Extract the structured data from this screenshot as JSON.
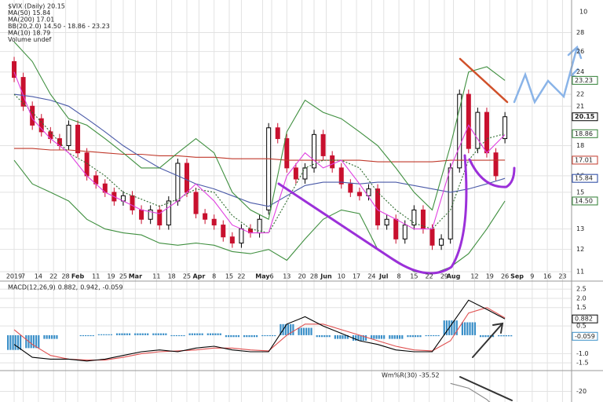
{
  "chart_data": {
    "type": "candlestick",
    "volume_tick": "10",
    "legend": [
      "$VIX (Daily) 20.15",
      "MA(50) 15.84",
      "MA(200) 17.01",
      "BB(20,2.0) 14.50 - 18.86 - 23.23",
      "MA(10) 18.79",
      "Volume undef"
    ],
    "legend_colors": [
      "#000000",
      "#1f3f9e",
      "#c0392b",
      "#2e7d32",
      "#d81bd8",
      "#555555"
    ],
    "log_scale": true,
    "grid": true,
    "xlim": [
      -2.6,
      184
    ],
    "xticks": [
      {
        "value": 0,
        "label": "2019"
      },
      {
        "value": 3,
        "label": "7"
      },
      {
        "value": 8,
        "label": "14"
      },
      {
        "value": 13,
        "label": "22"
      },
      {
        "value": 17,
        "label": "28"
      },
      {
        "value": 21,
        "label": "Feb"
      },
      {
        "value": 27,
        "label": "11"
      },
      {
        "value": 32,
        "label": "19"
      },
      {
        "value": 36,
        "label": "25"
      },
      {
        "value": 40,
        "label": "Mar"
      },
      {
        "value": 47,
        "label": "11"
      },
      {
        "value": 52,
        "label": "18"
      },
      {
        "value": 57,
        "label": "25"
      },
      {
        "value": 61,
        "label": "Apr"
      },
      {
        "value": 66,
        "label": "8"
      },
      {
        "value": 71,
        "label": "15"
      },
      {
        "value": 75,
        "label": "22"
      },
      {
        "value": 82,
        "label": "May"
      },
      {
        "value": 85,
        "label": "6"
      },
      {
        "value": 90,
        "label": "13"
      },
      {
        "value": 95,
        "label": "20"
      },
      {
        "value": 99,
        "label": "28"
      },
      {
        "value": 103,
        "label": "Jun"
      },
      {
        "value": 108,
        "label": "10"
      },
      {
        "value": 113,
        "label": "17"
      },
      {
        "value": 118,
        "label": "24"
      },
      {
        "value": 122,
        "label": "Jul"
      },
      {
        "value": 127,
        "label": "8"
      },
      {
        "value": 132,
        "label": "15"
      },
      {
        "value": 137,
        "label": "22"
      },
      {
        "value": 142,
        "label": "29"
      },
      {
        "value": 145,
        "label": "Aug"
      },
      {
        "value": 152,
        "label": "12"
      },
      {
        "value": 157,
        "label": "19"
      },
      {
        "value": 162,
        "label": "26"
      },
      {
        "value": 166,
        "label": "Sep"
      },
      {
        "value": 171,
        "label": "9"
      },
      {
        "value": 176,
        "label": "16"
      },
      {
        "value": 181,
        "label": "23"
      }
    ],
    "ylim": [
      10.8,
      31.8
    ],
    "yticks": [
      11,
      12,
      13,
      15,
      16,
      18,
      21,
      22,
      24,
      26,
      28
    ],
    "candles": {
      "x": [
        0,
        3,
        6,
        9,
        12,
        15,
        18,
        21,
        24,
        27,
        30,
        33,
        36,
        39,
        42,
        45,
        48,
        51,
        54,
        57,
        60,
        63,
        66,
        69,
        72,
        75,
        78,
        81,
        84,
        87,
        90,
        93,
        96,
        99,
        102,
        105,
        108,
        111,
        114,
        117,
        120,
        123,
        126,
        129,
        132,
        135,
        138,
        141,
        144,
        147,
        150,
        153,
        156,
        159,
        162
      ],
      "open": [
        25,
        23.5,
        21,
        20,
        19,
        18.5,
        18,
        19.5,
        17.5,
        16,
        15.5,
        15,
        14.5,
        14.8,
        14,
        13.5,
        14,
        13.2,
        14.5,
        16.8,
        15,
        13.8,
        13.5,
        13.2,
        12.6,
        12.3,
        13,
        12.8,
        14,
        19.3,
        18.5,
        16.5,
        15.8,
        16.5,
        18.8,
        17.3,
        16.5,
        15.5,
        15,
        14.8,
        15.2,
        13.2,
        13.5,
        12.5,
        13.2,
        14,
        13,
        12.2,
        12.5,
        16.5,
        22,
        17.8,
        20.5,
        17.5,
        18.5
      ],
      "close": [
        23.5,
        21,
        19.5,
        19,
        18.5,
        18,
        19.5,
        17.5,
        16,
        15.5,
        15,
        14.5,
        14.8,
        14,
        13.5,
        14,
        13.2,
        14.5,
        16.8,
        15,
        13.8,
        13.5,
        13.2,
        12.6,
        12.3,
        13,
        12.8,
        13.5,
        19.3,
        18.5,
        16.5,
        15.8,
        16.5,
        18.8,
        17.3,
        16.5,
        15.5,
        15,
        14.8,
        15.2,
        13.2,
        13.5,
        12.5,
        13.2,
        14,
        13,
        12.2,
        12.5,
        16.5,
        22,
        17.8,
        20.5,
        17.5,
        16,
        20.15
      ],
      "up_color": "#000000",
      "down_color": "#c8102e"
    },
    "x": [
      0,
      6,
      12,
      18,
      24,
      30,
      36,
      42,
      48,
      54,
      60,
      66,
      72,
      78,
      84,
      90,
      96,
      102,
      108,
      114,
      120,
      126,
      132,
      138,
      144,
      150,
      156,
      162
    ],
    "series": [
      {
        "name": "MA(200)",
        "color": "#c0392b",
        "values": [
          17.8,
          17.8,
          17.7,
          17.7,
          17.6,
          17.5,
          17.4,
          17.4,
          17.3,
          17.3,
          17.2,
          17.2,
          17.1,
          17.1,
          17.1,
          17.0,
          17.0,
          17.0,
          17.0,
          17.0,
          16.9,
          16.9,
          16.9,
          16.9,
          17.0,
          17.0,
          17.0,
          17.01
        ]
      },
      {
        "name": "MA(50)",
        "color": "#4a5aa8",
        "values": [
          22,
          21.8,
          21.5,
          21,
          20,
          19,
          18,
          17.2,
          16.5,
          16,
          15.5,
          15.2,
          14.8,
          14.4,
          14.2,
          14.8,
          15.4,
          15.6,
          15.6,
          15.5,
          15.6,
          15.6,
          15.4,
          15.2,
          15,
          15.2,
          15.5,
          15.84
        ]
      },
      {
        "name": "BB upper",
        "color": "#3f8f3f",
        "values": [
          27,
          25,
          22,
          20,
          19.5,
          18.5,
          17.5,
          16.5,
          16.5,
          17.5,
          18.5,
          17.5,
          15,
          14,
          13.5,
          19,
          21.5,
          20.5,
          20,
          19,
          18,
          16.5,
          15,
          14,
          18,
          24,
          24.5,
          23.23
        ]
      },
      {
        "name": "BB lower",
        "color": "#3f8f3f",
        "values": [
          17,
          15.5,
          15,
          14.5,
          13.5,
          13,
          12.8,
          12.7,
          12.3,
          12.2,
          12.3,
          12.2,
          11.9,
          11.8,
          12,
          11.5,
          12.5,
          13.5,
          14,
          13.8,
          12,
          11.5,
          11,
          10.9,
          11.2,
          11.8,
          13,
          14.5
        ]
      },
      {
        "name": "BB mid",
        "color": "#2e6b2e",
        "dashed": true,
        "values": [
          22,
          20.5,
          19,
          17.5,
          16.8,
          16,
          15,
          14.6,
          14.2,
          14.6,
          15.2,
          15,
          13.7,
          13,
          12.8,
          14.5,
          16.5,
          17,
          17,
          16.5,
          15,
          14,
          13.3,
          13,
          14,
          17,
          18.5,
          18.86
        ]
      },
      {
        "name": "MA(10)",
        "color": "#e040e0",
        "values": [
          24,
          20,
          18.5,
          17.5,
          16,
          15,
          14.5,
          14,
          13.8,
          14.5,
          15.5,
          14.5,
          13.2,
          12.8,
          12.8,
          16,
          17.5,
          16.5,
          17,
          15.5,
          14,
          13.5,
          13,
          13,
          16.5,
          19.5,
          17.5,
          18.79
        ]
      }
    ],
    "price_tags": [
      23.23,
      20.15,
      18.86,
      17.01,
      15.84,
      {
        "value": 14.5,
        "label": "14.50"
      }
    ],
    "price_tag_colors": [
      "#2e7d32",
      "#000000",
      "#2e7d32",
      "#c0392b",
      "#1f3f9e",
      "#2e7d32"
    ],
    "macd": {
      "legend": [
        "MACD(12,26,9)",
        "0.882,",
        "0.942,",
        "-0.059"
      ],
      "legend_colors": [
        "#000000",
        "#000000",
        "#d32f2f",
        "#1f8fcf"
      ],
      "ylim": [
        -1.75,
        2.85
      ],
      "yticks": [
        2.5,
        {
          "value": 2,
          "label": "2.0"
        },
        1.5,
        0.5,
        {
          "value": -1,
          "label": "-1.0"
        },
        -1.5
      ],
      "tags": [
        0.882,
        -0.059
      ],
      "macd": [
        -0.5,
        -1.2,
        -1.3,
        -1.3,
        -1.4,
        -1.3,
        -1.1,
        -0.9,
        -0.8,
        -0.9,
        -0.7,
        -0.6,
        -0.8,
        -0.9,
        -0.9,
        0.6,
        1.0,
        0.5,
        0.1,
        -0.3,
        -0.5,
        -0.8,
        -0.9,
        -0.9,
        0.5,
        1.9,
        1.4,
        0.882
      ],
      "signal": [
        0.3,
        -0.5,
        -1.1,
        -1.3,
        -1.35,
        -1.35,
        -1.2,
        -1.0,
        -0.9,
        -0.85,
        -0.8,
        -0.7,
        -0.7,
        -0.8,
        -0.85,
        0.0,
        0.6,
        0.6,
        0.3,
        0.0,
        -0.3,
        -0.6,
        -0.8,
        -0.85,
        -0.3,
        1.2,
        1.5,
        0.942
      ],
      "histogram": [
        -0.8,
        -0.7,
        -0.2,
        0,
        -0.05,
        0.05,
        0.1,
        0.1,
        0.1,
        -0.05,
        0.1,
        0.1,
        -0.1,
        -0.1,
        -0.05,
        0.6,
        0.4,
        -0.1,
        -0.2,
        -0.3,
        -0.2,
        -0.2,
        -0.1,
        -0.05,
        0.8,
        0.7,
        -0.1,
        -0.059
      ],
      "macd_color": "#000000",
      "signal_color": "#e05050",
      "histogram_color": "#3a8fc8"
    },
    "willr": {
      "legend": "Wm%R(30) -35.52",
      "ylim": [
        -50,
        -10
      ],
      "yticks": [
        -20
      ],
      "x": [
        144,
        150,
        156,
        162
      ],
      "values": [
        -15,
        -18,
        -25,
        -35.52
      ],
      "color": "#888888"
    }
  }
}
